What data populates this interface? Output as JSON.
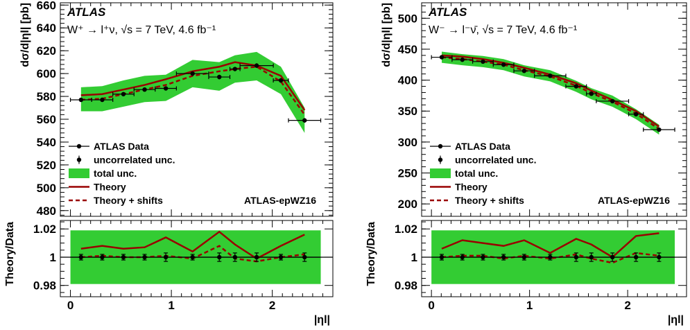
{
  "colors": {
    "band": "#33cc33",
    "theory": "#990000",
    "data": "#000000"
  },
  "chart_data": [
    {
      "type": "line",
      "experiment": "ATLAS",
      "process": "W⁺ → l⁺ν, √s = 7 TeV, 4.6 fb⁻¹",
      "ylabel": "dσ/d|ηl| [pb]",
      "ratio_ylabel": "Theory/Data",
      "xlabel": "|ηl|",
      "fit_label": "ATLAS-epWZ16",
      "xlim": [
        -0.1,
        2.6
      ],
      "ylim": [
        475,
        662
      ],
      "ratio_ylim": [
        0.972,
        1.026
      ],
      "x_ticks": [
        "0",
        "1",
        "2"
      ],
      "y_ticks": [
        "480",
        "500",
        "520",
        "540",
        "560",
        "580",
        "600",
        "620",
        "640",
        "660"
      ],
      "ratio_ticks": [
        "0.98",
        "1",
        "1.02"
      ],
      "legend": [
        "ATLAS Data",
        "uncorrelated unc.",
        "total unc.",
        "Theory",
        "Theory + shifts"
      ],
      "data": {
        "x": [
          0.105,
          0.315,
          0.525,
          0.735,
          0.945,
          1.21,
          1.475,
          1.63,
          1.845,
          2.085,
          2.32
        ],
        "xerr": [
          0.105,
          0.105,
          0.105,
          0.105,
          0.105,
          0.16,
          0.105,
          0.05,
          0.165,
          0.075,
          0.16
        ],
        "y": [
          577,
          577,
          582,
          586,
          587,
          600,
          597,
          604,
          607,
          594,
          559
        ],
        "yerr": [
          1.5,
          1.5,
          1.5,
          1.5,
          1.5,
          1.5,
          2,
          1.5,
          2,
          2,
          2
        ]
      },
      "total_band": {
        "x": [
          0.105,
          0.315,
          0.525,
          0.735,
          0.945,
          1.21,
          1.475,
          1.63,
          1.845,
          2.085,
          2.32
        ],
        "low": [
          567,
          567,
          571,
          575,
          576,
          588,
          585,
          592,
          594,
          582,
          548
        ],
        "high": [
          588,
          589,
          594,
          598,
          599,
          612,
          610,
          616,
          619,
          606,
          570
        ]
      },
      "theory": {
        "x": [
          0.105,
          0.315,
          0.525,
          0.735,
          0.945,
          1.21,
          1.475,
          1.63,
          1.845,
          2.085,
          2.32
        ],
        "y": [
          581,
          582,
          586,
          590,
          595,
          602,
          606,
          610,
          607,
          598,
          568
        ]
      },
      "theory_shifts": {
        "x": [
          0.105,
          0.315,
          0.525,
          0.735,
          0.945,
          1.21,
          1.475,
          1.63,
          1.845,
          2.085,
          2.32
        ],
        "y": [
          577,
          578,
          582,
          586,
          590,
          598,
          602,
          604,
          606,
          593,
          564
        ]
      },
      "ratio_theory": {
        "x": [
          0.105,
          0.315,
          0.525,
          0.735,
          0.945,
          1.21,
          1.475,
          1.63,
          1.845,
          2.085,
          2.32
        ],
        "y": [
          1.006,
          1.008,
          1.006,
          1.007,
          1.014,
          1.004,
          1.018,
          1.009,
          0.999,
          1.008,
          1.016
        ]
      },
      "ratio_shifts": {
        "x": [
          0.105,
          0.315,
          0.525,
          0.735,
          0.945,
          1.21,
          1.475,
          1.63,
          1.845,
          2.085,
          2.32
        ],
        "y": [
          1.0,
          1.001,
          1.0,
          1.0,
          1.001,
          0.999,
          1.008,
          0.999,
          0.997,
          1.0,
          1.002
        ]
      },
      "ratio_band": {
        "low": 0.981,
        "high": 1.019
      },
      "ratio_errs": [
        0.002,
        0.002,
        0.002,
        0.002,
        0.003,
        0.002,
        0.003,
        0.003,
        0.003,
        0.002,
        0.003
      ]
    },
    {
      "type": "line",
      "experiment": "ATLAS",
      "process": "W⁻ → l⁻ν̄, √s = 7 TeV, 4.6 fb⁻¹",
      "ylabel": "dσ/d|ηl| [pb]",
      "ratio_ylabel": "Theory/Data",
      "xlabel": "|ηl|",
      "fit_label": "ATLAS-epWZ16",
      "xlim": [
        -0.1,
        2.6
      ],
      "ylim": [
        180,
        525
      ],
      "ratio_ylim": [
        0.972,
        1.026
      ],
      "x_ticks": [
        "0",
        "1",
        "2"
      ],
      "y_ticks": [
        "200",
        "250",
        "300",
        "350",
        "400",
        "450",
        "500"
      ],
      "ratio_ticks": [
        "0.98",
        "1",
        "1.02"
      ],
      "legend": [
        "ATLAS Data",
        "uncorrelated unc.",
        "total unc.",
        "Theory",
        "Theory + shifts"
      ],
      "data": {
        "x": [
          0.105,
          0.315,
          0.525,
          0.735,
          0.945,
          1.21,
          1.475,
          1.63,
          1.845,
          2.085,
          2.32
        ],
        "xerr": [
          0.105,
          0.105,
          0.105,
          0.105,
          0.105,
          0.16,
          0.105,
          0.05,
          0.165,
          0.075,
          0.16
        ],
        "y": [
          437,
          433,
          430,
          425,
          415,
          407,
          390,
          378,
          366,
          345,
          320
        ],
        "yerr": [
          2,
          2,
          2,
          2,
          2,
          2,
          2,
          2,
          2,
          2,
          2
        ]
      },
      "total_band": {
        "x": [
          0.105,
          0.315,
          0.525,
          0.735,
          0.945,
          1.21,
          1.475,
          1.63,
          1.845,
          2.085,
          2.32
        ],
        "low": [
          428,
          424,
          421,
          416,
          406,
          398,
          381,
          369,
          357,
          337,
          312
        ],
        "high": [
          446,
          442,
          439,
          434,
          424,
          416,
          399,
          387,
          375,
          353,
          328
        ]
      },
      "theory": {
        "x": [
          0.105,
          0.315,
          0.525,
          0.735,
          0.945,
          1.21,
          1.475,
          1.63,
          1.845,
          2.085,
          2.32
        ],
        "y": [
          440,
          438,
          434,
          428,
          420,
          409,
          395,
          383,
          368,
          350,
          325
        ]
      },
      "theory_shifts": {
        "x": [
          0.105,
          0.315,
          0.525,
          0.735,
          0.945,
          1.21,
          1.475,
          1.63,
          1.845,
          2.085,
          2.32
        ],
        "y": [
          437,
          434,
          430,
          425,
          416,
          406,
          391,
          379,
          365,
          346,
          321
        ]
      },
      "ratio_theory": {
        "x": [
          0.105,
          0.315,
          0.525,
          0.735,
          0.945,
          1.21,
          1.475,
          1.63,
          1.845,
          2.085,
          2.32
        ],
        "y": [
          1.006,
          1.012,
          1.01,
          1.008,
          1.012,
          1.003,
          1.013,
          1.009,
          1.0,
          1.015,
          1.017
        ]
      },
      "ratio_shifts": {
        "x": [
          0.105,
          0.315,
          0.525,
          0.735,
          0.945,
          1.21,
          1.475,
          1.63,
          1.845,
          2.085,
          2.32
        ],
        "y": [
          1.0,
          1.001,
          1.001,
          0.999,
          1.001,
          0.999,
          1.002,
          0.999,
          0.996,
          1.003,
          1.001
        ]
      },
      "ratio_band": {
        "low": 0.981,
        "high": 1.019
      },
      "ratio_errs": [
        0.002,
        0.002,
        0.002,
        0.002,
        0.002,
        0.002,
        0.003,
        0.003,
        0.003,
        0.003,
        0.003
      ]
    }
  ]
}
